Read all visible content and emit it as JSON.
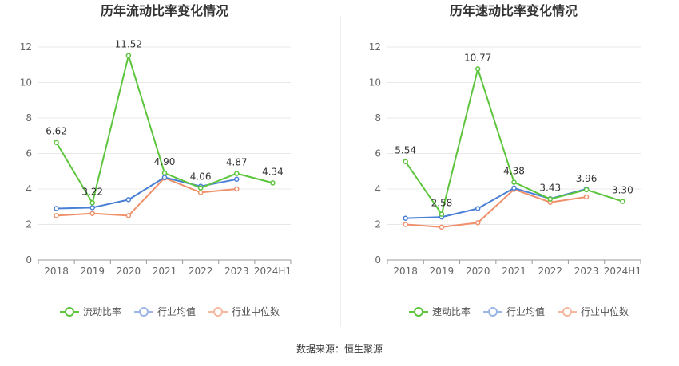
{
  "colors": {
    "main": "#5cc53c",
    "avg": "#4a7fd6",
    "median": "#f0906a",
    "avg_legend": "#9bb6e6",
    "median_legend": "#f5b89f",
    "grid": "#e8e8e8",
    "axis": "#666666",
    "text": "#333333"
  },
  "source_text": "数据来源：恒生聚源",
  "chart_data": [
    {
      "type": "line",
      "title": "历年流动比率变化情况",
      "categories": [
        "2018",
        "2019",
        "2020",
        "2021",
        "2022",
        "2023",
        "2024H1"
      ],
      "ylim": [
        0,
        12
      ],
      "yticks": [
        "0",
        "2",
        "4",
        "6",
        "8",
        "10",
        "12"
      ],
      "grid": true,
      "legend_position": "bottom-center",
      "series": [
        {
          "name": "流动比率",
          "values": [
            6.62,
            3.22,
            11.52,
            4.9,
            4.06,
            4.87,
            4.34
          ],
          "labels": [
            "6.62",
            "3.22",
            "11.52",
            "4.90",
            "4.06",
            "4.87",
            "4.34"
          ]
        },
        {
          "name": "行业均值",
          "values": [
            2.9,
            2.95,
            3.4,
            4.65,
            4.15,
            4.55,
            null
          ]
        },
        {
          "name": "行业中位数",
          "values": [
            2.5,
            2.62,
            2.5,
            4.62,
            3.8,
            4.0,
            null
          ]
        }
      ]
    },
    {
      "type": "line",
      "title": "历年速动比率变化情况",
      "categories": [
        "2018",
        "2019",
        "2020",
        "2021",
        "2022",
        "2023",
        "2024H1"
      ],
      "ylim": [
        0,
        12
      ],
      "yticks": [
        "0",
        "2",
        "4",
        "6",
        "8",
        "10",
        "12"
      ],
      "grid": true,
      "legend_position": "bottom-center",
      "series": [
        {
          "name": "速动比率",
          "values": [
            5.54,
            2.58,
            10.77,
            4.38,
            3.43,
            3.96,
            3.3
          ],
          "labels": [
            "5.54",
            "2.58",
            "10.77",
            "4.38",
            "3.43",
            "3.96",
            "3.30"
          ]
        },
        {
          "name": "行业均值",
          "values": [
            2.35,
            2.42,
            2.9,
            4.05,
            3.45,
            4.0,
            null
          ]
        },
        {
          "name": "行业中位数",
          "values": [
            2.0,
            1.85,
            2.1,
            3.98,
            3.25,
            3.55,
            null
          ]
        }
      ]
    }
  ]
}
